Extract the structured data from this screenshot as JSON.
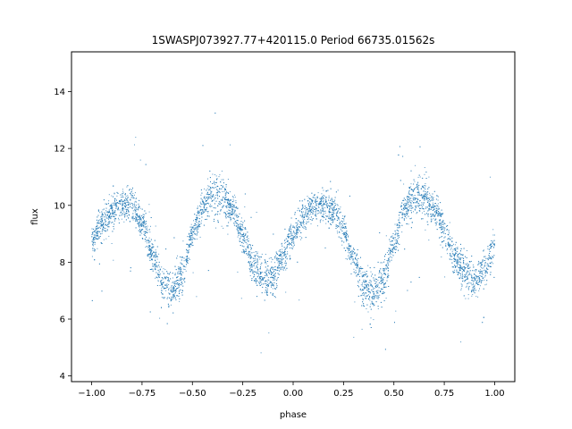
{
  "chart_data": {
    "type": "scatter",
    "title": "1SWASPJ073927.77+420115.0 Period 66735.01562s",
    "xlabel": "phase",
    "ylabel": "flux",
    "xlim": [
      -1.1,
      1.1
    ],
    "ylim": [
      3.8,
      15.4
    ],
    "x_ticks": [
      -1.0,
      -0.75,
      -0.5,
      -0.25,
      0.0,
      0.25,
      0.5,
      0.75,
      1.0
    ],
    "x_tick_labels": [
      "−1.00",
      "−0.75",
      "−0.50",
      "−0.25",
      "0.00",
      "0.25",
      "0.50",
      "0.75",
      "1.00"
    ],
    "y_ticks": [
      4,
      6,
      8,
      10,
      12,
      14
    ],
    "y_tick_labels": [
      "4",
      "6",
      "8",
      "10",
      "12",
      "14"
    ],
    "grid": false,
    "marker_color": "#1f77b4",
    "series": [
      {
        "x": [
          -1.0,
          -0.95,
          -0.9,
          -0.85,
          -0.8,
          -0.75,
          -0.7,
          -0.65,
          -0.6,
          -0.55,
          -0.5,
          -0.45,
          -0.4,
          -0.35,
          -0.3,
          -0.25,
          -0.2,
          -0.15,
          -0.1,
          -0.05,
          0.0,
          0.05,
          0.1,
          0.15,
          0.2,
          0.25,
          0.3,
          0.35,
          0.4,
          0.45,
          0.5,
          0.55,
          0.6,
          0.65,
          0.7,
          0.75,
          0.8,
          0.85,
          0.9,
          0.95,
          1.0
        ],
        "y": [
          8.7,
          9.3,
          9.8,
          10.0,
          10.0,
          9.4,
          8.3,
          7.3,
          7.0,
          7.6,
          8.9,
          9.9,
          10.3,
          10.3,
          9.8,
          8.9,
          7.9,
          7.4,
          7.5,
          8.2,
          9.0,
          9.6,
          9.9,
          10.0,
          9.8,
          9.2,
          8.1,
          7.2,
          6.9,
          7.4,
          8.7,
          9.8,
          10.3,
          10.3,
          9.9,
          9.1,
          8.2,
          7.6,
          7.4,
          7.7,
          8.6
        ]
      }
    ]
  }
}
